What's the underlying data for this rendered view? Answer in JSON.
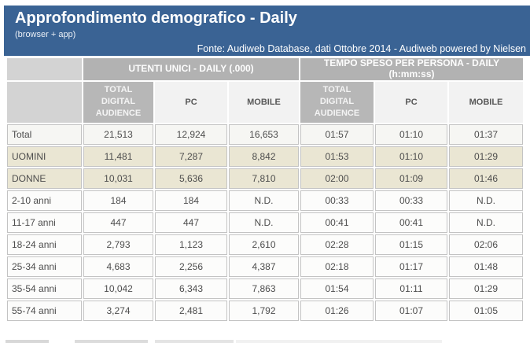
{
  "banner": {
    "title": "Approfondimento demografico - Daily",
    "subtitle": "(browser + app)",
    "source": "Fonte: Audiweb Database, dati Ottobre 2014 - Audiweb powered by Nielsen"
  },
  "table": {
    "group_headers": [
      {
        "label": "UTENTI UNICI - DAILY (.000)"
      },
      {
        "label": "TEMPO SPESO PER PERSONA - DAILY (h:mm:ss)"
      }
    ],
    "sub_headers": [
      "TOTAL DIGITAL AUDIENCE",
      "PC",
      "MOBILE",
      "TOTAL DIGITAL AUDIENCE",
      "PC",
      "MOBILE"
    ],
    "rows": [
      {
        "label": "Total",
        "style": "total",
        "values": [
          "21,513",
          "12,924",
          "16,653",
          "01:57",
          "01:10",
          "01:37"
        ]
      },
      {
        "label": "UOMINI",
        "style": "gender",
        "values": [
          "11,481",
          "7,287",
          "8,842",
          "01:53",
          "01:10",
          "01:29"
        ]
      },
      {
        "label": "DONNE",
        "style": "gender",
        "values": [
          "10,031",
          "5,636",
          "7,810",
          "02:00",
          "01:09",
          "01:46"
        ]
      },
      {
        "label": "2-10 anni",
        "style": "age",
        "values": [
          "184",
          "184",
          "N.D.",
          "00:33",
          "00:33",
          "N.D."
        ]
      },
      {
        "label": "11-17 anni",
        "style": "age",
        "values": [
          "447",
          "447",
          "N.D.",
          "00:41",
          "00:41",
          "N.D."
        ]
      },
      {
        "label": "18-24 anni",
        "style": "age",
        "values": [
          "2,793",
          "1,123",
          "2,610",
          "02:28",
          "01:15",
          "02:06"
        ]
      },
      {
        "label": "25-34 anni",
        "style": "age",
        "values": [
          "4,683",
          "2,256",
          "4,387",
          "02:18",
          "01:17",
          "01:48"
        ]
      },
      {
        "label": "35-54 anni",
        "style": "age",
        "values": [
          "10,042",
          "6,343",
          "7,863",
          "01:54",
          "01:11",
          "01:29"
        ]
      },
      {
        "label": "55-74 anni",
        "style": "age",
        "values": [
          "3,274",
          "2,481",
          "1,792",
          "01:26",
          "01:07",
          "01:05"
        ]
      }
    ]
  },
  "colors": {
    "banner_blue": "#3a6394",
    "group_header_gray": "#b2b2b2",
    "tda_header_gray": "#b7b7b7",
    "label_header_gray": "#d3d3d3",
    "gender_row_beige": "#eae6d3",
    "total_row": "#f6f6f3",
    "age_row": "#fcfcfb",
    "cell_border": "#c3c3c3",
    "text_dark": "#4d4d4d"
  }
}
